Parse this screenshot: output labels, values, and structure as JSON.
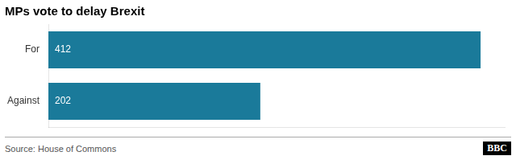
{
  "chart_data": {
    "type": "bar",
    "title": "MPs vote to delay Brexit",
    "orientation": "horizontal",
    "categories": [
      "For",
      "Against"
    ],
    "values": [
      412,
      202
    ],
    "color": "#1a7a9a",
    "data_labels": true,
    "xlim": [
      0,
      435
    ],
    "grid": false,
    "tick_labels": "y",
    "annotations": [
      "Source: House of Commons",
      "BBC"
    ]
  }
}
